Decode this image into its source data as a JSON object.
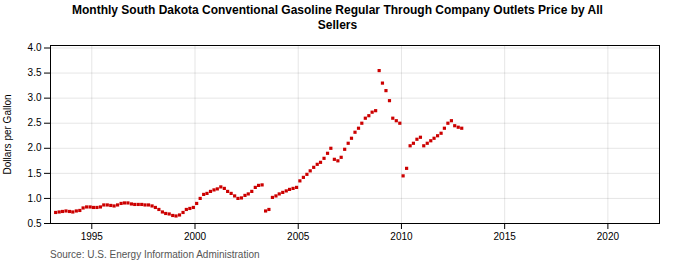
{
  "chart_data": {
    "type": "scatter",
    "title": "Monthly South Dakota Conventional Gasoline Regular Through Company Outlets Price by All\nSellers",
    "ylabel": "Dollars per Gallon",
    "source": "Source: U.S. Energy Information Administration",
    "color": "#cc0000",
    "marker": "square",
    "grid": true,
    "xlim": [
      1993.0,
      2022.5
    ],
    "ylim": [
      0.5,
      4.05
    ],
    "xticks": [
      1995,
      2000,
      2005,
      2010,
      2015,
      2020
    ],
    "yticks": [
      0.5,
      {
        "value": 1.0,
        "label": "1.0"
      },
      1.5,
      {
        "value": 2.0,
        "label": "2.0"
      },
      2.5,
      {
        "value": 3.0,
        "label": "3.0"
      },
      3.5,
      {
        "value": 4.0,
        "label": "4.0"
      }
    ],
    "x": [
      1993.25,
      1993.42,
      1993.58,
      1993.75,
      1993.92,
      1994.08,
      1994.25,
      1994.42,
      1994.58,
      1994.75,
      1994.92,
      1995.08,
      1995.25,
      1995.42,
      1995.58,
      1995.75,
      1995.92,
      1996.08,
      1996.25,
      1996.42,
      1996.58,
      1996.75,
      1996.92,
      1997.08,
      1997.25,
      1997.42,
      1997.58,
      1997.75,
      1997.92,
      1998.08,
      1998.25,
      1998.42,
      1998.58,
      1998.75,
      1998.92,
      1999.08,
      1999.25,
      1999.42,
      1999.58,
      1999.75,
      1999.92,
      2000.08,
      2000.25,
      2000.42,
      2000.58,
      2000.75,
      2000.92,
      2001.08,
      2001.25,
      2001.42,
      2001.58,
      2001.75,
      2001.92,
      2002.08,
      2002.25,
      2002.42,
      2002.58,
      2002.75,
      2002.92,
      2003.08,
      2003.25,
      2003.42,
      2003.58,
      2003.75,
      2003.92,
      2004.08,
      2004.25,
      2004.42,
      2004.58,
      2004.75,
      2004.92,
      2005.08,
      2005.25,
      2005.42,
      2005.58,
      2005.75,
      2005.92,
      2006.08,
      2006.25,
      2006.42,
      2006.58,
      2006.75,
      2006.92,
      2007.08,
      2007.25,
      2007.42,
      2007.58,
      2007.75,
      2007.92,
      2008.08,
      2008.25,
      2008.42,
      2008.58,
      2008.75,
      2008.92,
      2009.08,
      2009.25,
      2009.42,
      2009.58,
      2009.75,
      2009.92,
      2010.08,
      2010.25,
      2010.42,
      2010.58,
      2010.75,
      2010.92,
      2011.08,
      2011.25,
      2011.42,
      2011.58,
      2011.75,
      2011.92,
      2012.08,
      2012.25,
      2012.42,
      2012.58,
      2012.75,
      2012.92
    ],
    "values": [
      0.72,
      0.73,
      0.74,
      0.75,
      0.74,
      0.73,
      0.75,
      0.76,
      0.81,
      0.83,
      0.83,
      0.82,
      0.82,
      0.83,
      0.87,
      0.87,
      0.86,
      0.85,
      0.87,
      0.9,
      0.91,
      0.91,
      0.89,
      0.88,
      0.88,
      0.88,
      0.87,
      0.87,
      0.85,
      0.82,
      0.78,
      0.73,
      0.7,
      0.69,
      0.66,
      0.65,
      0.67,
      0.72,
      0.78,
      0.8,
      0.82,
      0.9,
      1.0,
      1.08,
      1.1,
      1.14,
      1.17,
      1.19,
      1.23,
      1.2,
      1.14,
      1.1,
      1.05,
      1.0,
      1.01,
      1.06,
      1.09,
      1.14,
      1.22,
      1.26,
      1.27,
      0.75,
      0.78,
      1.02,
      1.05,
      1.09,
      1.12,
      1.15,
      1.18,
      1.2,
      1.22,
      1.35,
      1.42,
      1.48,
      1.55,
      1.62,
      1.68,
      1.72,
      1.8,
      1.9,
      2.0,
      1.78,
      1.75,
      1.82,
      1.98,
      2.1,
      2.2,
      2.32,
      2.4,
      2.5,
      2.6,
      2.65,
      2.72,
      2.75,
      3.55,
      3.3,
      3.15,
      2.95,
      2.6,
      2.55,
      2.5,
      1.45,
      1.6,
      2.05,
      2.1,
      2.18,
      2.22,
      2.05,
      2.1,
      2.15,
      2.2,
      2.25,
      2.3,
      2.4,
      2.5,
      2.55,
      2.45,
      2.42,
      2.4
    ]
  }
}
